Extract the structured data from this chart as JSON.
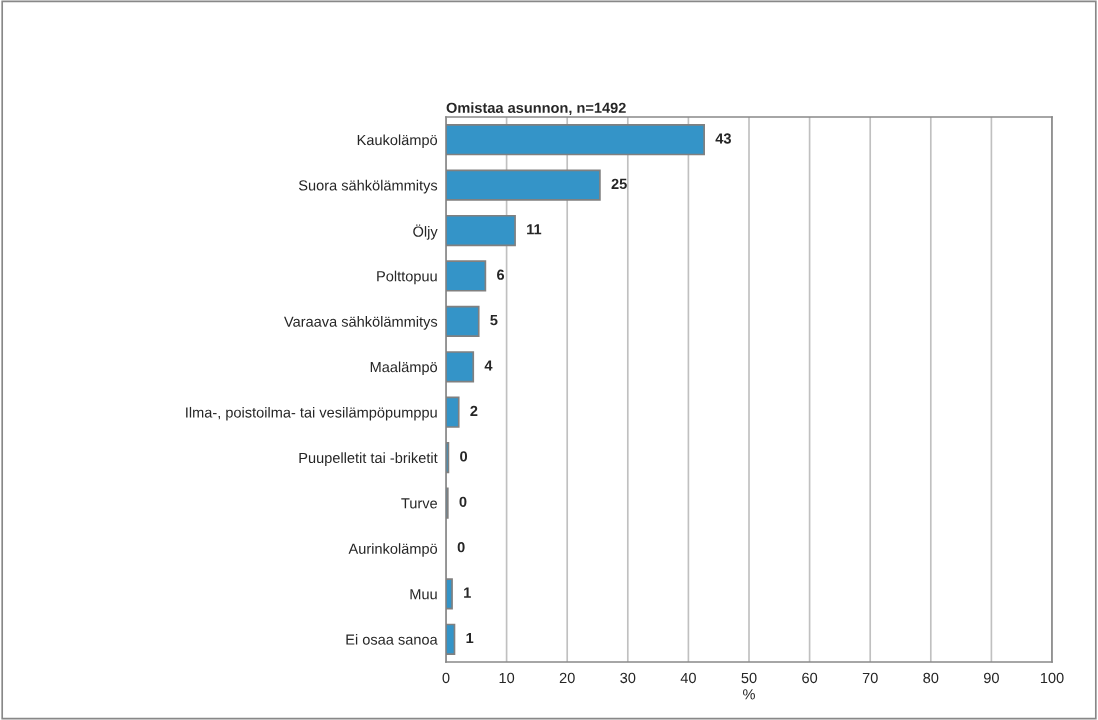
{
  "chart_data": {
    "type": "bar",
    "orientation": "horizontal",
    "title": "Omistaa asunnon, n=1492",
    "xlabel": "%",
    "categories": [
      "Kaukolämpö",
      "Suora sähkölämmitys",
      "Öljy",
      "Polttopuu",
      "Varaava sähkölämmitys",
      "Maalämpö",
      "Ilma-, poistoilma- tai vesilämpöpumppu",
      "Puupelletit tai -briketit",
      "Turve",
      "Aurinkolämpö",
      "Muu",
      "Ei osaa sanoa"
    ],
    "values": [
      42.6,
      25.4,
      11.4,
      6.5,
      5.4,
      4.5,
      2.1,
      0.4,
      0.3,
      0,
      1.0,
      1.4
    ],
    "value_labels": [
      "43",
      "25",
      "11",
      "6",
      "5",
      "4",
      "2",
      "0",
      "0",
      "0",
      "1",
      "1"
    ],
    "color": "#3494c8",
    "xlim": [
      0,
      100
    ],
    "xticks": [
      0,
      10,
      20,
      30,
      40,
      50,
      60,
      70,
      80,
      90,
      100
    ],
    "grid": "x"
  }
}
